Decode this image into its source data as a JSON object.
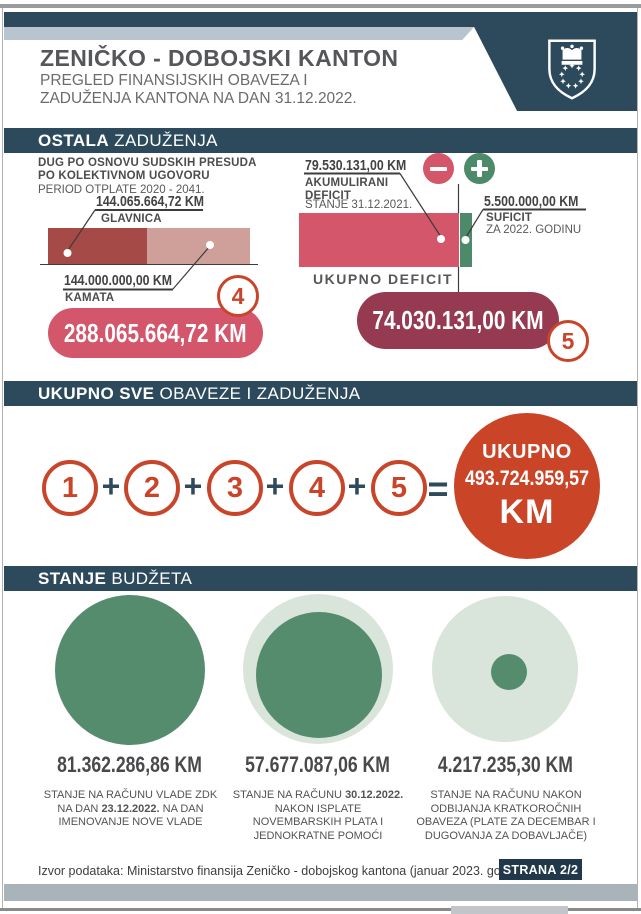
{
  "page": {
    "title": "ZENIČKO - DOBOJSKI KANTON",
    "subtitle_line1": "PREGLED FINANSIJSKIH OBAVEZA I",
    "subtitle_line2": "ZADUŽENJA KANTONA NA DAN 31.12.2022."
  },
  "bands": {
    "ostala_bold": "OSTALA",
    "ostala_rest": " ZADUŽENJA",
    "ukupno_bold": "UKUPNO SVE",
    "ukupno_rest": " OBAVEZE I ZADUŽENJA",
    "stanje_bold": "STANJE",
    "stanje_rest": " BUDŽETA"
  },
  "court_debt": {
    "title_line1": "DUG PO OSNOVU SUDSKIH PRESUDA",
    "title_line2": "PO KOLEKTIVNOM UGOVORU",
    "period": "PERIOD OTPLATE 2020 - 2041.",
    "glavnica_value": "144.065.664,72 KM",
    "glavnica_label": "GLAVNICA",
    "kamata_value": "144.000.000,00 KM",
    "kamata_label": "KAMATA",
    "total": "288.065.664,72 KM",
    "badge": "4"
  },
  "deficit": {
    "akumulirani_value": "79.530.131,00 KM",
    "akumulirani_label_line1": "AKUMULIRANI",
    "akumulirani_label_line2": "DEFICIT",
    "akumulirani_sub": "STANJE 31.12.2021.",
    "suficit_value": "5.500.000,00 KM",
    "suficit_label": "SUFICIT",
    "suficit_sub": "ZA 2022. GODINU",
    "ukupno_label": "UKUPNO DEFICIT",
    "total": "74.030.131,00 KM",
    "badge": "5"
  },
  "equation": {
    "terms": [
      "1",
      "2",
      "3",
      "4",
      "5"
    ],
    "plus": "+",
    "equals": "=",
    "result_label": "UKUPNO",
    "result_value": "493.724.959,57",
    "result_currency": "KM"
  },
  "budget": {
    "items": [
      {
        "amount": "81.362.286,86 KM",
        "desc": [
          {
            "t": "STANJE NA RAČUNU VLADE ZDK NA DAN ",
            "b": false
          },
          {
            "t": "23.12.2022.",
            "b": true
          },
          {
            "t": " NA DAN IMENOVANJE NOVE VLADE",
            "b": false
          }
        ]
      },
      {
        "amount": "57.677.087,06 KM",
        "desc": [
          {
            "t": "STANJE NA RAČUNU ",
            "b": false
          },
          {
            "t": "30.12.2022.",
            "b": true
          },
          {
            "t": " NAKON ISPLATE NOVEMBARSKIH PLATA I JEDNOKRATNE POMOĆI",
            "b": false
          }
        ]
      },
      {
        "amount": "4.217.235,30 KM",
        "desc": [
          {
            "t": "STANJE NA RAČUNU NAKON ODBIJANJA KRATKOROČNIH OBAVEZA (PLATE ZA DECEMBAR I DUGOVANJA ZA DOBAVLJAČE)",
            "b": false
          }
        ]
      }
    ]
  },
  "footer": {
    "source": "Izvor podataka: Ministarstvo finansija Zeničko - dobojskog kantona (januar 2023. godine)",
    "page": "STRANA 2/2"
  },
  "colors": {
    "navy": "#2d4a5c",
    "orange": "#c9452a",
    "pink_red": "#d4566b",
    "maroon": "#953a50",
    "dark_red": "#a54a47",
    "light_pink": "#cf9f9a",
    "green": "#4d8a6a",
    "budget_green": "#568c6e",
    "light_green": "#d9e4da"
  },
  "chart_data": [
    {
      "type": "bar",
      "title": "DUG PO OSNOVU SUDSKIH PRESUDA PO KOLEKTIVNOM UGOVORU",
      "subtitle": "PERIOD OTPLATE 2020 - 2041.",
      "categories": [
        "GLAVNICA",
        "KAMATA"
      ],
      "values": [
        144065664.72,
        144000000.0
      ],
      "total": 288065664.72,
      "unit": "KM",
      "orientation": "horizontal-stacked"
    },
    {
      "type": "bar",
      "title": "UKUPNO DEFICIT",
      "categories": [
        "AKUMULIRANI DEFICIT (STANJE 31.12.2021.)",
        "SUFICIT ZA 2022. GODINU"
      ],
      "values": [
        79530131.0,
        5500000.0
      ],
      "total": 74030131.0,
      "unit": "KM",
      "orientation": "horizontal-stacked"
    },
    {
      "type": "other",
      "title": "UKUPNO SVE OBAVEZE I ZADUŽENJA",
      "expression": "1 + 2 + 3 + 4 + 5 = 493.724.959,57 KM",
      "total": 493724959.57,
      "unit": "KM"
    },
    {
      "type": "area",
      "title": "STANJE BUDŽETA",
      "categories": [
        "STANJE NA RAČUNU VLADE ZDK NA DAN 23.12.2022. NA DAN IMENOVANJE NOVE VLADE",
        "STANJE NA RAČUNU 30.12.2022. NAKON ISPLATE NOVEMBARSKIH PLATA I JEDNOKRATNE POMOĆI",
        "STANJE NA RAČUNU NAKON ODBIJANJA KRATKOROČNIH OBAVEZA (PLATE ZA DECEMBAR I DUGOVANJA ZA DOBAVLJAČE)"
      ],
      "values": [
        81362286.86,
        57677087.06,
        4217235.3
      ],
      "unit": "KM"
    }
  ]
}
